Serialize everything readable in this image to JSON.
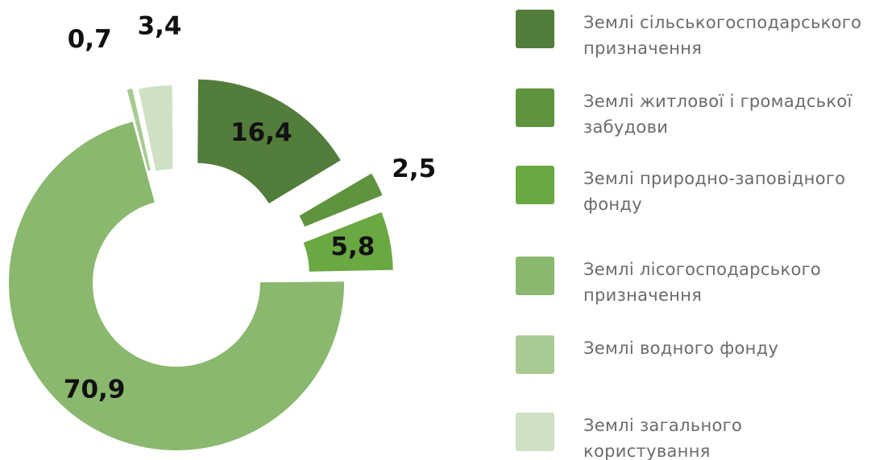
{
  "chart_data": {
    "type": "pie",
    "categories": [
      "Землі сільськогосподарського призначення",
      "Землі житлової і громадської забудови",
      "Землі природно-заповідного фонду",
      "Землі лісогосподарського призначення",
      "Землі водного фонду",
      "Землі загального користування"
    ],
    "values": [
      16.4,
      2.5,
      5.8,
      70.9,
      0.7,
      3.4
    ],
    "value_labels": [
      "16,4",
      "2,5",
      "5,8",
      "70,9",
      "0,7",
      "3,4"
    ],
    "colors": [
      "#527d3a",
      "#5f943f",
      "#6aa842",
      "#8ab86e",
      "#a9cb93",
      "#cfe0c4"
    ],
    "donut": true,
    "legend": "right"
  }
}
